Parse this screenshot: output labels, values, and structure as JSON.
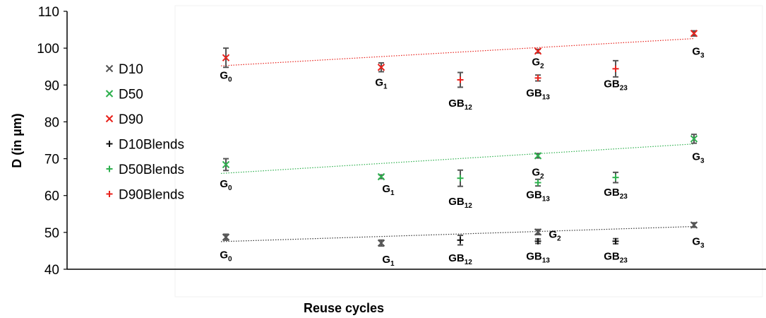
{
  "chart_data": {
    "type": "scatter",
    "ylabel": "D (in µm)",
    "xlabel": "Reuse cycles",
    "ylim": [
      40,
      110
    ],
    "yticks": [
      40,
      50,
      60,
      70,
      80,
      90,
      100,
      110
    ],
    "categories": [
      "G0",
      "G1",
      "GB12",
      "G2 / GB13",
      "GB23",
      "G3"
    ],
    "grid": false,
    "legend_position": "left",
    "colors": {
      "D10": "#555555",
      "D50": "#2eb04e",
      "D90": "#e8221c",
      "error_bar": "#555555",
      "trend_black": "#333333"
    },
    "series": [
      {
        "name": "D10",
        "marker": "×",
        "color": "#555555",
        "points": [
          {
            "x": 1,
            "y": 48.7,
            "err": 0.8,
            "label": "G",
            "sub": "0"
          },
          {
            "x": 3,
            "y": 47.1,
            "err": 0.8,
            "label": "G",
            "sub": "1"
          },
          {
            "x": 5,
            "y": 50.1,
            "err": 0.7,
            "label": "G",
            "sub": "2"
          },
          {
            "x": 7,
            "y": 52.0,
            "err": 0.6,
            "label": "G",
            "sub": "3"
          }
        ],
        "trend": [
          47.5,
          51.6
        ]
      },
      {
        "name": "D50",
        "marker": "×",
        "color": "#2eb04e",
        "points": [
          {
            "x": 1,
            "y": 68.4,
            "err": 1.6,
            "label": "G",
            "sub": "0"
          },
          {
            "x": 3,
            "y": 65.1,
            "err": 0.5,
            "label": "G",
            "sub": "1"
          },
          {
            "x": 5,
            "y": 70.8,
            "err": 0.6,
            "label": "G",
            "sub": "2"
          },
          {
            "x": 7,
            "y": 75.4,
            "err": 1.2,
            "label": "G",
            "sub": "3"
          }
        ],
        "trend": [
          66.0,
          74.0
        ]
      },
      {
        "name": "D90",
        "marker": "×",
        "color": "#e8221c",
        "points": [
          {
            "x": 1,
            "y": 97.4,
            "err": 2.6,
            "label": "G",
            "sub": "0"
          },
          {
            "x": 3,
            "y": 94.8,
            "err": 1.2,
            "label": "G",
            "sub": "1"
          },
          {
            "x": 5,
            "y": 99.2,
            "err": 0.5,
            "label": "G",
            "sub": "2"
          },
          {
            "x": 7,
            "y": 104.0,
            "err": 0.7,
            "label": "G",
            "sub": "3"
          }
        ],
        "trend": [
          95.2,
          102.6
        ]
      },
      {
        "name": "D10Blends",
        "marker": "+",
        "color": "#111111",
        "points": [
          {
            "x": 4,
            "y": 47.9,
            "err": 1.3,
            "label": "GB",
            "sub": "12"
          },
          {
            "x": 5,
            "y": 47.6,
            "err": 0.6,
            "label": "GB",
            "sub": "13"
          },
          {
            "x": 6,
            "y": 47.6,
            "err": 0.7,
            "label": "GB",
            "sub": "23"
          }
        ]
      },
      {
        "name": "D50Blends",
        "marker": "+",
        "color": "#2eb04e",
        "points": [
          {
            "x": 4,
            "y": 64.7,
            "err": 2.2,
            "label": "GB",
            "sub": "12"
          },
          {
            "x": 5,
            "y": 63.5,
            "err": 0.9,
            "label": "GB",
            "sub": "13"
          },
          {
            "x": 6,
            "y": 64.9,
            "err": 1.4,
            "label": "GB",
            "sub": "23"
          }
        ]
      },
      {
        "name": "D90Blends",
        "marker": "+",
        "color": "#e8221c",
        "points": [
          {
            "x": 4,
            "y": 91.4,
            "err": 2.0,
            "label": "GB",
            "sub": "12"
          },
          {
            "x": 5,
            "y": 91.9,
            "err": 0.8,
            "label": "GB",
            "sub": "13"
          },
          {
            "x": 6,
            "y": 94.4,
            "err": 2.2,
            "label": "GB",
            "sub": "23"
          }
        ]
      }
    ]
  }
}
